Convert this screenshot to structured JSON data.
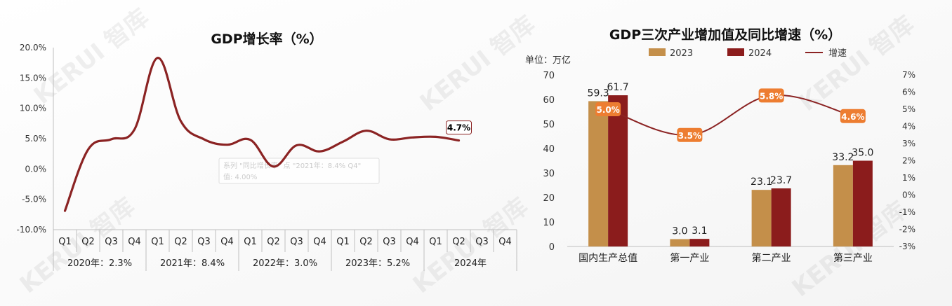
{
  "watermark_text": "KERUI 智库",
  "chart_data": [
    {
      "type": "line",
      "title": "GDP增长率（%）",
      "xlabel": "",
      "ylabel": "",
      "ylim": [
        -10,
        20
      ],
      "y_ticks": [
        "20.0%",
        "15.0%",
        "10.0%",
        "5.0%",
        "0.0%",
        "-5.0%",
        "-10.0%"
      ],
      "quarters": [
        "Q1",
        "Q2",
        "Q3",
        "Q4",
        "Q1",
        "Q2",
        "Q3",
        "Q4",
        "Q1",
        "Q2",
        "Q3",
        "Q4",
        "Q1",
        "Q2",
        "Q3",
        "Q4",
        "Q1",
        "Q2",
        "Q3",
        "Q4"
      ],
      "year_groups": [
        "2020年：2.3%",
        "2021年：8.4%",
        "2022年：3.0%",
        "2023年：5.2%",
        "2024年"
      ],
      "series": [
        {
          "name": "",
          "color": "#8B2323",
          "values": [
            -6.9,
            3.2,
            4.9,
            6.5,
            18.3,
            7.9,
            4.9,
            4.0,
            4.8,
            0.4,
            3.9,
            2.9,
            4.5,
            6.3,
            4.9,
            5.2,
            5.3,
            4.7
          ]
        }
      ],
      "end_label": "4.7%",
      "tooltip_lines": [
        "系列 \"同比增长率\" 点 \"2021年：8.4% Q4\"",
        "值: 4.00%"
      ],
      "grid": false,
      "legend": "none"
    },
    {
      "type": "bar",
      "title": "GDP三次产业增加值及同比增速（%）",
      "unit_label": "单位：万亿",
      "categories": [
        "国内生产总值",
        "第一产业",
        "第二产业",
        "第三产业"
      ],
      "series": [
        {
          "name": "2023",
          "color": "#C48F4A",
          "values": [
            59.3,
            3.0,
            23.1,
            33.2
          ]
        },
        {
          "name": "2024",
          "color": "#8B1C1C",
          "values": [
            61.7,
            3.1,
            23.7,
            35.0
          ]
        }
      ],
      "line_series": {
        "name": "增速",
        "color": "#8B2323",
        "axis": "right",
        "values": [
          5.0,
          3.5,
          5.8,
          4.6
        ],
        "labels": [
          "5.0%",
          "3.5%",
          "5.8%",
          "4.6%"
        ],
        "label_color": "#ED7D31"
      },
      "ylim": [
        0,
        70
      ],
      "y_ticks": [
        "0",
        "10",
        "20",
        "30",
        "40",
        "50",
        "60",
        "70"
      ],
      "y2lim": [
        -3,
        7
      ],
      "y2_ticks": [
        "-3%",
        "-2%",
        "-1%",
        "0%",
        "1%",
        "2%",
        "3%",
        "4%",
        "5%",
        "6%",
        "7%"
      ],
      "legend": "top"
    }
  ]
}
